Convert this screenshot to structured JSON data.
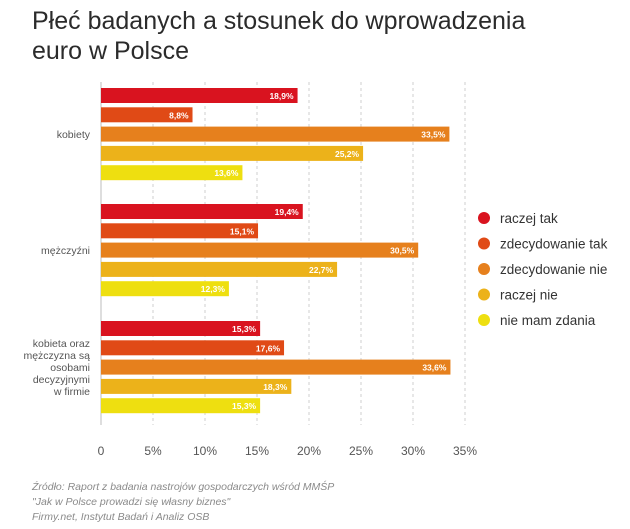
{
  "chart_data": {
    "type": "bar",
    "orientation": "horizontal",
    "title": "Płeć badanych a stosunek do wprowadzenia euro w Polsce",
    "title_lines": [
      "Płeć badanych a stosunek do wprowadzenia",
      "euro w Polsce"
    ],
    "xlim": [
      0,
      35
    ],
    "xticks": [
      "0",
      "5%",
      "10%",
      "15%",
      "20%",
      "25%",
      "30%",
      "35%"
    ],
    "grid": "vertical dashed",
    "legend_position": "right",
    "categories": [
      {
        "label_lines": [
          "kobiety"
        ]
      },
      {
        "label_lines": [
          "mężczyźni"
        ]
      },
      {
        "label_lines": [
          "kobieta oraz",
          "mężczyzna są",
          "osobami",
          "decyzyjnymi",
          "w firmie"
        ]
      }
    ],
    "series": [
      {
        "name": "raczej tak",
        "color": "#d9131f",
        "values": [
          18.9,
          19.4,
          15.3
        ],
        "labels": [
          "18,9%",
          "19,4%",
          "15,3%"
        ]
      },
      {
        "name": "zdecydowanie tak",
        "color": "#e04a16",
        "values": [
          8.8,
          15.1,
          17.6
        ],
        "labels": [
          "8,8%",
          "15,1%",
          "17,6%"
        ]
      },
      {
        "name": "zdecydowanie nie",
        "color": "#e6801d",
        "values": [
          33.5,
          30.5,
          33.6
        ],
        "labels": [
          "33,5%",
          "30,5%",
          "33,6%"
        ]
      },
      {
        "name": "raczej nie",
        "color": "#ecb21a",
        "values": [
          25.2,
          22.7,
          18.3
        ],
        "labels": [
          "25,2%",
          "22,7%",
          "18,3%"
        ]
      },
      {
        "name": "nie mam zdania",
        "color": "#eedf10",
        "values": [
          13.6,
          12.3,
          15.3
        ],
        "labels": [
          "13,6%",
          "12,3%",
          "15,3%"
        ]
      }
    ]
  },
  "source_lines": [
    "Źródło: Raport z badania nastrojów gospodarczych wśród MMŚP",
    "\"Jak w Polsce prowadzi się własny biznes\"",
    "Firmy.net, Instytut Badań i Analiz OSB"
  ]
}
